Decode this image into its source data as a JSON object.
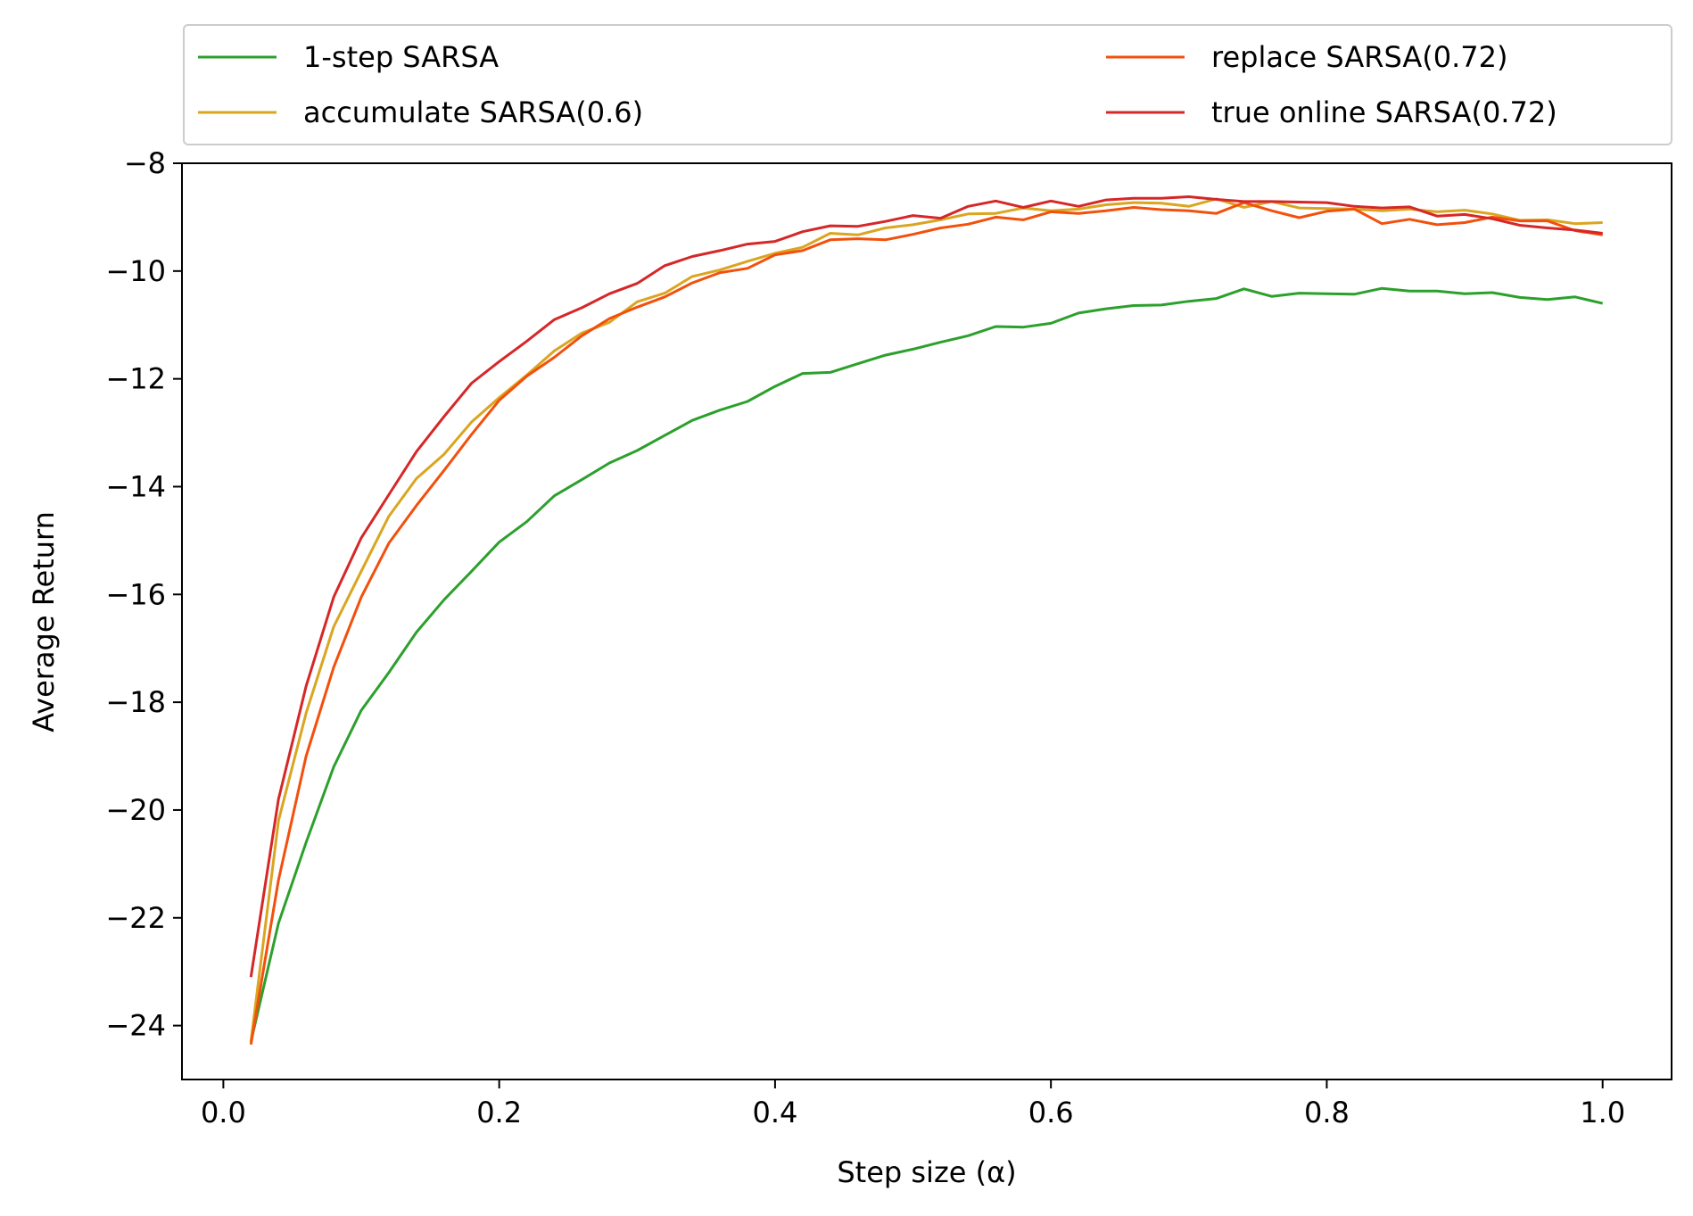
{
  "chart_data": {
    "type": "line",
    "title": "",
    "xlabel": "Step size (α)",
    "ylabel": "Average Return",
    "xlim": [
      -0.03,
      1.05
    ],
    "ylim": [
      -25.0,
      -8.0
    ],
    "xticks": [
      0.0,
      0.2,
      0.4,
      0.6,
      0.8,
      1.0
    ],
    "xtick_labels": [
      "0.0",
      "0.2",
      "0.4",
      "0.6",
      "0.8",
      "1.0"
    ],
    "yticks": [
      -24,
      -22,
      -20,
      -18,
      -16,
      -14,
      -12,
      -10,
      -8
    ],
    "ytick_labels": [
      "−24",
      "−22",
      "−20",
      "−18",
      "−16",
      "−14",
      "−12",
      "−10",
      "−8"
    ],
    "grid": false,
    "legend_position": "top (above plot, two columns)",
    "x": [
      0.02,
      0.04,
      0.06,
      0.08,
      0.1,
      0.12,
      0.14,
      0.16,
      0.18,
      0.2,
      0.22,
      0.24,
      0.26,
      0.28,
      0.3,
      0.32,
      0.34,
      0.36,
      0.38,
      0.4,
      0.42,
      0.44,
      0.46,
      0.48,
      0.5,
      0.52,
      0.54,
      0.56,
      0.58,
      0.6,
      0.62,
      0.64,
      0.66,
      0.68,
      0.7,
      0.72,
      0.74,
      0.76,
      0.78,
      0.8,
      0.82,
      0.84,
      0.86,
      0.88,
      0.9,
      0.92,
      0.94,
      0.96,
      0.98,
      1.0
    ],
    "series": [
      {
        "name": "1-step SARSA",
        "color": "#2ca02c",
        "values": [
          -24.3,
          -22.1,
          -20.6,
          -19.2,
          -18.15,
          -17.45,
          -16.7,
          -16.1,
          -15.57,
          -15.03,
          -14.65,
          -14.17,
          -13.87,
          -13.56,
          -13.33,
          -13.05,
          -12.77,
          -12.58,
          -12.42,
          -12.14,
          -11.9,
          -11.88,
          -11.72,
          -11.56,
          -11.45,
          -11.32,
          -11.2,
          -11.03,
          -11.04,
          -10.97,
          -10.78,
          -10.7,
          -10.64,
          -10.63,
          -10.56,
          -10.51,
          -10.33,
          -10.47,
          -10.41,
          -10.42,
          -10.43,
          -10.32,
          -10.37,
          -10.37,
          -10.42,
          -10.4,
          -10.49,
          -10.53,
          -10.48,
          -10.6
        ]
      },
      {
        "name": "accumulate SARSA(0.6)",
        "color": "#daa520",
        "values": [
          -24.3,
          -20.2,
          -18.2,
          -16.6,
          -15.57,
          -14.55,
          -13.85,
          -13.4,
          -12.8,
          -12.35,
          -11.93,
          -11.48,
          -11.15,
          -10.95,
          -10.57,
          -10.41,
          -10.1,
          -9.98,
          -9.82,
          -9.67,
          -9.56,
          -9.3,
          -9.33,
          -9.2,
          -9.14,
          -9.05,
          -8.94,
          -8.93,
          -8.83,
          -8.88,
          -8.85,
          -8.77,
          -8.73,
          -8.74,
          -8.8,
          -8.66,
          -8.82,
          -8.71,
          -8.83,
          -8.84,
          -8.85,
          -8.88,
          -8.85,
          -8.9,
          -8.87,
          -8.94,
          -9.06,
          -9.05,
          -9.12,
          -9.1
        ]
      },
      {
        "name": "replace SARSA(0.72)",
        "color": "#f2500c",
        "values": [
          -24.35,
          -21.3,
          -19.0,
          -17.35,
          -16.05,
          -15.05,
          -14.35,
          -13.7,
          -13.03,
          -12.4,
          -11.95,
          -11.6,
          -11.2,
          -10.88,
          -10.67,
          -10.48,
          -10.22,
          -10.03,
          -9.95,
          -9.7,
          -9.62,
          -9.42,
          -9.4,
          -9.42,
          -9.32,
          -9.2,
          -9.13,
          -9.0,
          -9.05,
          -8.9,
          -8.93,
          -8.88,
          -8.82,
          -8.86,
          -8.88,
          -8.93,
          -8.73,
          -8.88,
          -9.01,
          -8.89,
          -8.85,
          -9.12,
          -9.04,
          -9.14,
          -9.1,
          -9.0,
          -9.07,
          -9.07,
          -9.25,
          -9.33
        ]
      },
      {
        "name": "true online SARSA(0.72)",
        "color": "#d62728",
        "values": [
          -23.1,
          -19.8,
          -17.7,
          -16.05,
          -14.95,
          -14.15,
          -13.35,
          -12.7,
          -12.08,
          -11.68,
          -11.3,
          -10.9,
          -10.68,
          -10.42,
          -10.23,
          -9.9,
          -9.73,
          -9.62,
          -9.5,
          -9.45,
          -9.27,
          -9.16,
          -9.17,
          -9.08,
          -8.97,
          -9.02,
          -8.8,
          -8.7,
          -8.82,
          -8.7,
          -8.8,
          -8.68,
          -8.65,
          -8.65,
          -8.62,
          -8.67,
          -8.71,
          -8.71,
          -8.72,
          -8.73,
          -8.8,
          -8.83,
          -8.81,
          -8.98,
          -8.95,
          -9.03,
          -9.15,
          -9.2,
          -9.24,
          -9.3
        ]
      }
    ]
  }
}
